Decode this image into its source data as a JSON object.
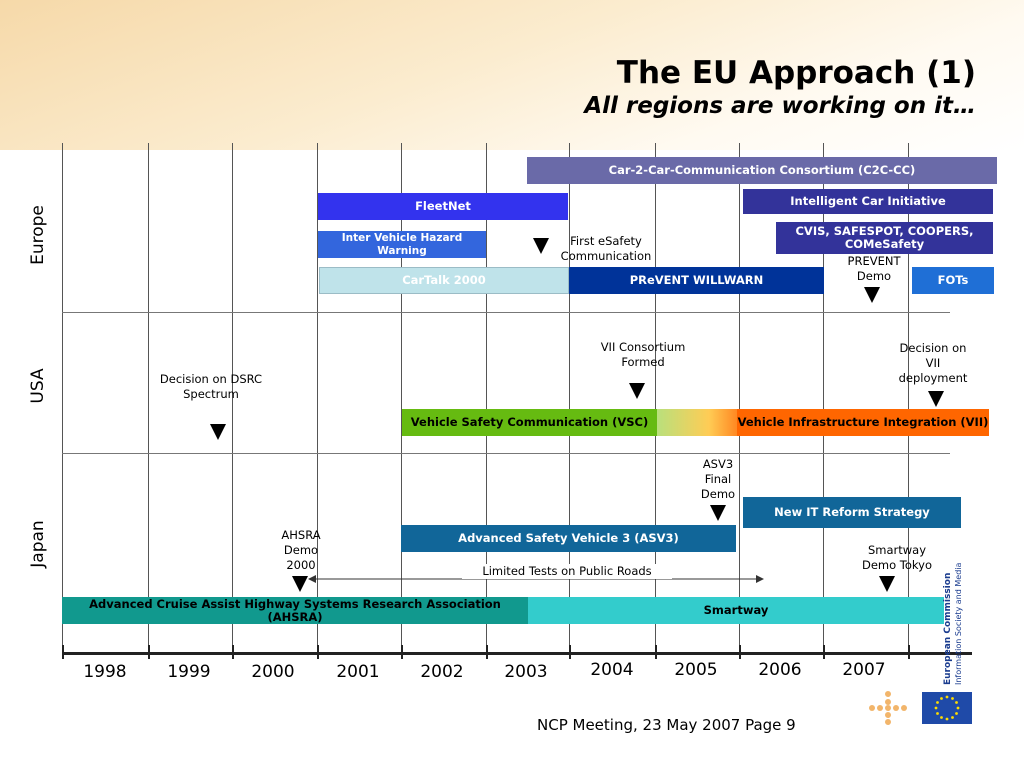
{
  "title": {
    "line1": "The EU Approach (1)",
    "line2": "All regions are working on it…"
  },
  "regions": {
    "europe": "Europe",
    "usa": "USA",
    "japan": "Japan"
  },
  "years": [
    "1998",
    "1999",
    "2000",
    "2001",
    "2002",
    "2003",
    "2004",
    "2005",
    "2006",
    "2007"
  ],
  "europe": {
    "c2c": "Car-2-Car-Communication Consortium (C2C-CC)",
    "intelligent_car": "Intelligent Car Initiative",
    "fleetnet": "FleetNet",
    "cvis": "CVIS, SAFESPOT, COOPERS, COMeSafety",
    "ivhw": "Inter Vehicle Hazard Warning",
    "first_esafety": "First eSafety Communication",
    "cartalk": "CarTalk 2000",
    "prevent_willwarn": "PReVENT WILLWARN",
    "prevent_demo": "PREVENT Demo",
    "fots": "FOTs"
  },
  "usa": {
    "dsrc": "Decision on DSRC Spectrum",
    "vii_formed": "VII Consortium Formed",
    "vii_decision": "Decision on VII deployment",
    "vsc": "Vehicle Safety Communication (VSC)",
    "vii": "Vehicle Infrastructure Integration (VII)"
  },
  "japan": {
    "asv3_demo": "ASV3 Final Demo",
    "new_it": "New IT Reform Strategy",
    "ahsra_demo": "AHSRA Demo 2000",
    "asv3": "Advanced Safety Vehicle 3 (ASV3)",
    "smartway_demo": "Smartway Demo Tokyo",
    "limited_tests": "Limited Tests on Public Roads",
    "ahsra": "Advanced Cruise Assist Highway Systems Research Association (AHSRA)",
    "smartway": "Smartway"
  },
  "footer": "NCP Meeting, 23 May 2007 Page 9",
  "logo": {
    "name": "European Commission",
    "sub": "Information Society and Media"
  },
  "colors": {
    "c2c": "#6a6aa8",
    "intelligent_car": "#33339a",
    "fleetnet": "#3333ee",
    "ivhw": "#3366dd",
    "cartalk": "#bfe3ea",
    "prevent": "#003399",
    "fots": "#1f6fd6",
    "vsc": "#66bb11",
    "vii": "#ff6600",
    "asv3": "#116699",
    "ahsra": "#11998e",
    "smartway": "#33cccc"
  }
}
